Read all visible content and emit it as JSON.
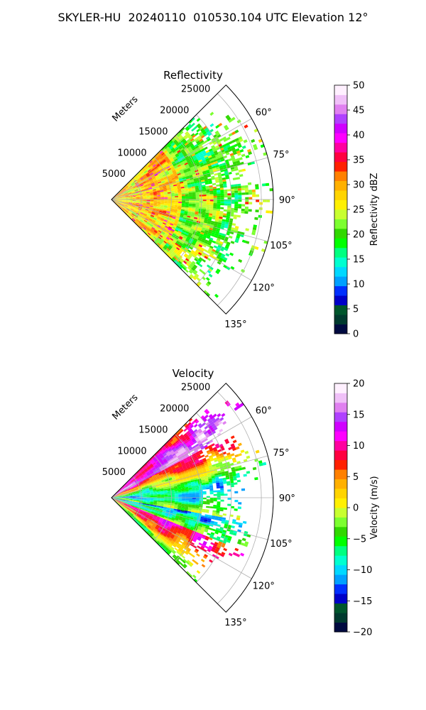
{
  "suptitle": "SKYLER-HU  20240110  010530.104 UTC Elevation 12°",
  "chart_data": [
    {
      "type": "heatmap",
      "subtype": "polar-sector",
      "title": "Reflectivity",
      "radial_label": "Meters",
      "radial_ticks": [
        5000,
        10000,
        15000,
        20000,
        25000
      ],
      "radial_tick_labels": [
        "5000",
        "10000",
        "15000",
        "20000",
        "25000"
      ],
      "rlim": [
        0,
        27000
      ],
      "azimuth_range_deg": [
        45,
        135
      ],
      "angle_ticks": [
        60,
        75,
        90,
        105,
        120,
        135
      ],
      "angle_tick_labels": [
        "60°",
        "75°",
        "90°",
        "105°",
        "120°",
        "135°"
      ],
      "grid": true,
      "colorbar": {
        "label": "Reflectivity dBZ",
        "range": [
          0,
          50
        ],
        "ticks": [
          0,
          5,
          10,
          15,
          20,
          25,
          30,
          35,
          40,
          45,
          50
        ],
        "tick_labels": [
          "0",
          "5",
          "10",
          "15",
          "20",
          "25",
          "30",
          "35",
          "40",
          "45",
          "50"
        ],
        "colors": [
          "#000a40",
          "#003a2e",
          "#00562c",
          "#0000c8",
          "#0030ff",
          "#00a0ff",
          "#00d8ff",
          "#00ffd0",
          "#00ff80",
          "#00ff00",
          "#30d800",
          "#7cff30",
          "#c8ff30",
          "#fff000",
          "#ffd400",
          "#ffb000",
          "#ff8000",
          "#ff2000",
          "#ff0040",
          "#ff00a0",
          "#ff00ff",
          "#d000ff",
          "#b040ff",
          "#e080f0",
          "#f0c0f8",
          "#fff0ff"
        ]
      },
      "data_extent_m": 22000,
      "typical_values": [
        20,
        30
      ]
    },
    {
      "type": "heatmap",
      "subtype": "polar-sector",
      "title": "Velocity",
      "radial_label": "Meters",
      "radial_ticks": [
        5000,
        10000,
        15000,
        20000,
        25000
      ],
      "radial_tick_labels": [
        "5000",
        "10000",
        "15000",
        "20000",
        "25000"
      ],
      "rlim": [
        0,
        27000
      ],
      "azimuth_range_deg": [
        45,
        135
      ],
      "angle_ticks": [
        60,
        75,
        90,
        105,
        120,
        135
      ],
      "angle_tick_labels": [
        "60°",
        "75°",
        "90°",
        "105°",
        "120°",
        "135°"
      ],
      "grid": true,
      "colorbar": {
        "label": "Velocity (m/s)",
        "range": [
          -20,
          20
        ],
        "ticks": [
          -20,
          -15,
          -10,
          -5,
          0,
          5,
          10,
          15,
          20
        ],
        "tick_labels": [
          "−20",
          "−15",
          "−10",
          "−5",
          "0",
          "5",
          "10",
          "15",
          "20"
        ],
        "colors": [
          "#000a40",
          "#003a2e",
          "#00562c",
          "#0000c8",
          "#0030ff",
          "#00a0ff",
          "#00d8ff",
          "#00ffd0",
          "#00ff80",
          "#00ff00",
          "#30d800",
          "#7cff30",
          "#c8ff30",
          "#fff000",
          "#ffd400",
          "#ffb000",
          "#ff8000",
          "#ff2000",
          "#ff0040",
          "#ff00a0",
          "#ff00ff",
          "#d000ff",
          "#b040ff",
          "#e080f0",
          "#f0c0f8",
          "#fff0ff"
        ]
      },
      "data_extent_m": 22000
    }
  ]
}
